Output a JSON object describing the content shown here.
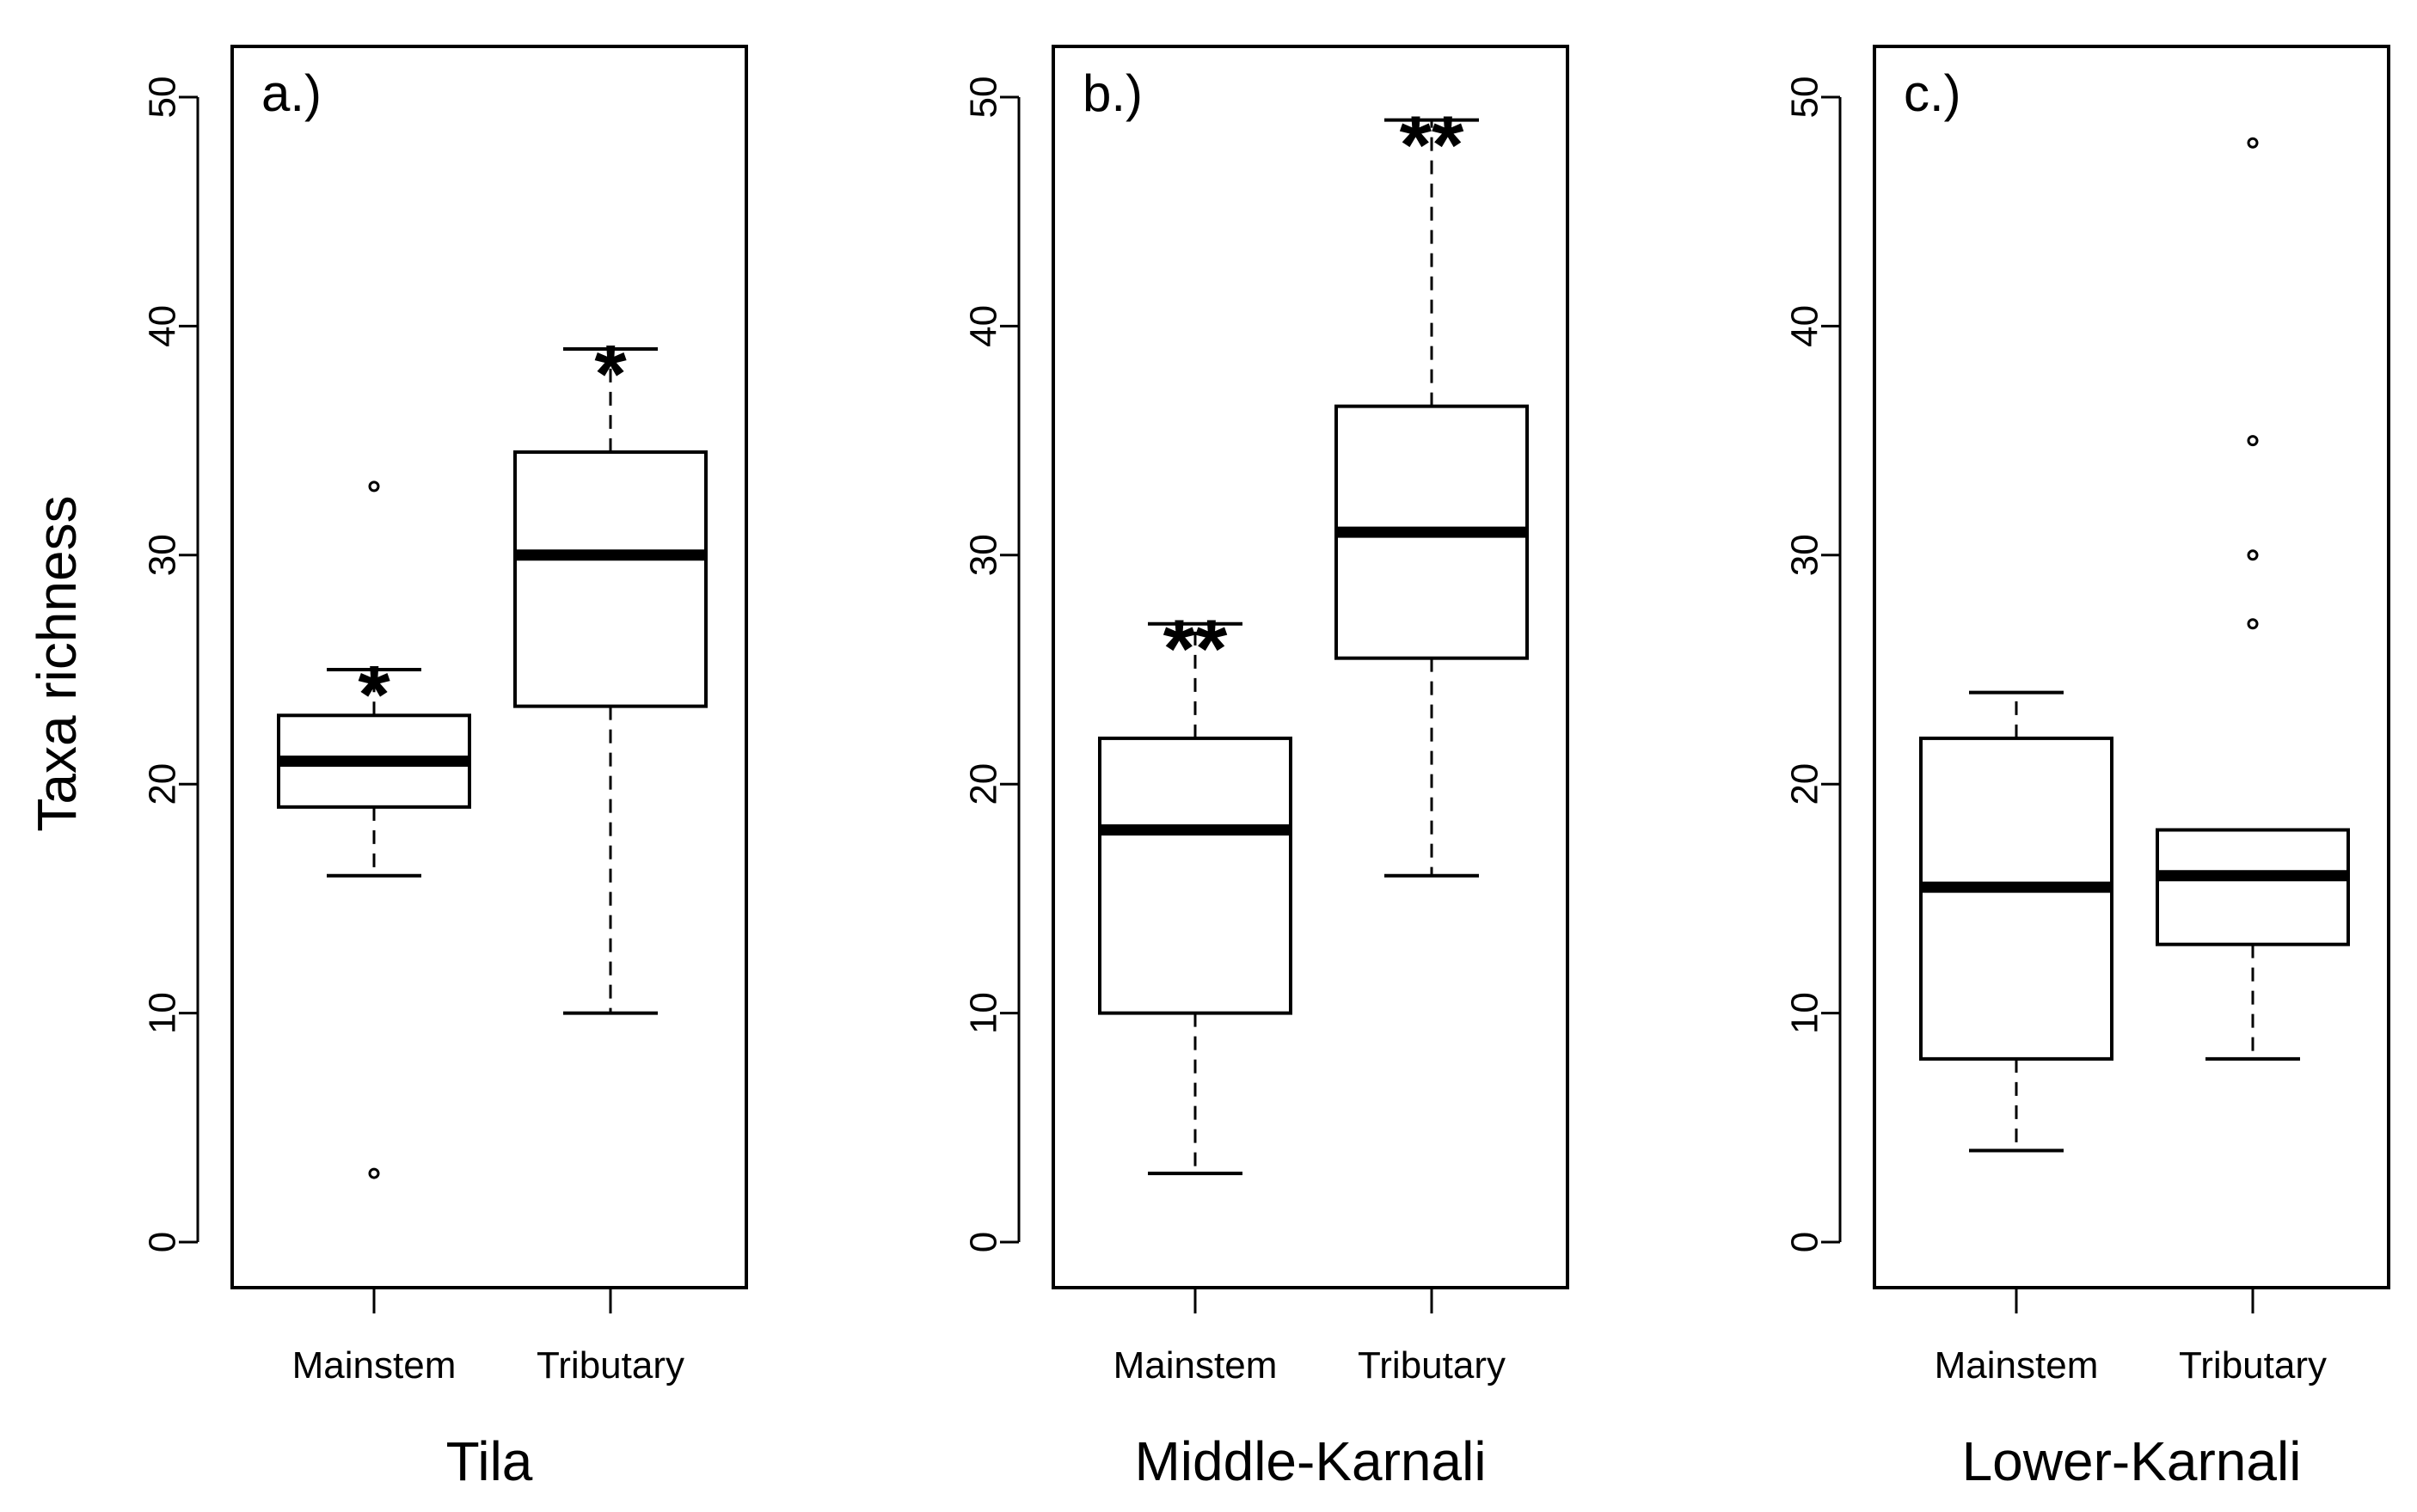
{
  "chart_data": {
    "type": "box",
    "ylabel": "Taxa richness",
    "ylim": [
      0,
      52
    ],
    "yticks": [
      0,
      10,
      20,
      30,
      40,
      50
    ],
    "categories": [
      "Mainstem",
      "Tributary"
    ],
    "panels": [
      {
        "label": "a.)",
        "xlabel": "Tila",
        "boxes": [
          {
            "category": "Mainstem",
            "lower_whisker": 16,
            "q1": 19,
            "median": 21,
            "q3": 23,
            "upper_whisker": 25,
            "outliers": [
              33,
              3
            ],
            "significance": "*"
          },
          {
            "category": "Tributary",
            "lower_whisker": 10,
            "q1": 23.4,
            "median": 30,
            "q3": 34.5,
            "upper_whisker": 39,
            "outliers": [],
            "significance": "*"
          }
        ]
      },
      {
        "label": "b.)",
        "xlabel": "Middle-Karnali",
        "boxes": [
          {
            "category": "Mainstem",
            "lower_whisker": 3,
            "q1": 10,
            "median": 18,
            "q3": 22,
            "upper_whisker": 27,
            "outliers": [],
            "significance": "**"
          },
          {
            "category": "Tributary",
            "lower_whisker": 16,
            "q1": 25.5,
            "median": 31,
            "q3": 36.5,
            "upper_whisker": 49,
            "outliers": [],
            "significance": "**"
          }
        ]
      },
      {
        "label": "c.)",
        "xlabel": "Lower-Karnali",
        "boxes": [
          {
            "category": "Mainstem",
            "lower_whisker": 4,
            "q1": 8,
            "median": 15.5,
            "q3": 22,
            "upper_whisker": 24,
            "outliers": [],
            "significance": ""
          },
          {
            "category": "Tributary",
            "lower_whisker": 8,
            "q1": 13,
            "median": 16,
            "q3": 18,
            "upper_whisker": 18,
            "outliers": [
              48,
              35,
              30,
              27
            ],
            "significance": ""
          }
        ]
      }
    ]
  }
}
